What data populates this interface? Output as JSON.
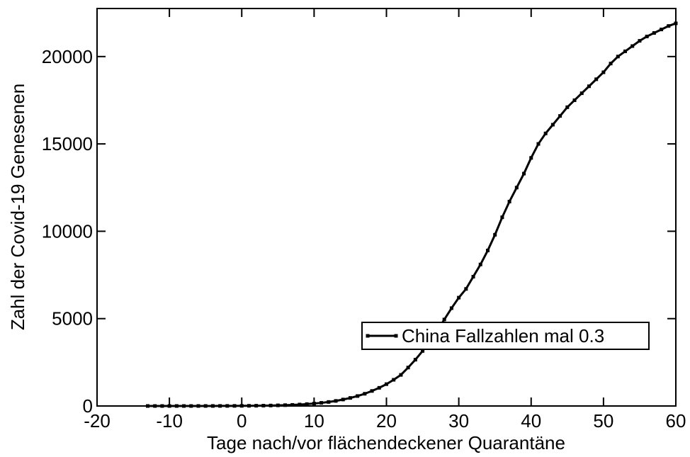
{
  "chart_data": {
    "type": "line",
    "xlabel": "Tage nach/vor flächendeckener Quarantäne",
    "ylabel": "Zahl der Covid-19 Genesenen",
    "x": [
      -13,
      -12,
      -11,
      -10,
      -9,
      -8,
      -7,
      -6,
      -5,
      -4,
      -3,
      -2,
      -1,
      0,
      1,
      2,
      3,
      4,
      5,
      6,
      7,
      8,
      9,
      10,
      11,
      12,
      13,
      14,
      15,
      16,
      17,
      18,
      19,
      20,
      21,
      22,
      23,
      24,
      25,
      26,
      27,
      28,
      29,
      30,
      31,
      32,
      33,
      34,
      35,
      36,
      37,
      38,
      39,
      40,
      41,
      42,
      43,
      44,
      45,
      46,
      47,
      48,
      49,
      50,
      51,
      52,
      53,
      54,
      55,
      56,
      57,
      58,
      59,
      60
    ],
    "series": [
      {
        "name": "China Fallzahlen mal 0.3",
        "color": "#000000",
        "values": [
          0,
          0,
          0,
          0,
          0,
          0,
          0,
          1,
          1,
          2,
          3,
          4,
          6,
          8,
          11,
          15,
          20,
          27,
          36,
          48,
          63,
          83,
          108,
          140,
          180,
          230,
          290,
          370,
          460,
          570,
          700,
          860,
          1040,
          1250,
          1500,
          1780,
          2200,
          2650,
          3150,
          3700,
          4300,
          4950,
          5600,
          6200,
          6700,
          7400,
          8100,
          8900,
          9800,
          10800,
          11700,
          12500,
          13300,
          14200,
          15000,
          15600,
          16100,
          16600,
          17100,
          17500,
          17900,
          18300,
          18700,
          19100,
          19600,
          20000,
          20300,
          20600,
          20900,
          21150,
          21350,
          21550,
          21750,
          21900
        ]
      }
    ],
    "xlim": [
      -20,
      60
    ],
    "xticks": [
      -20,
      -10,
      0,
      10,
      20,
      30,
      40,
      50,
      60
    ],
    "ylim": [
      0,
      22750
    ],
    "yticks": [
      0,
      5000,
      10000,
      15000,
      20000
    ],
    "legend": "lower right"
  }
}
